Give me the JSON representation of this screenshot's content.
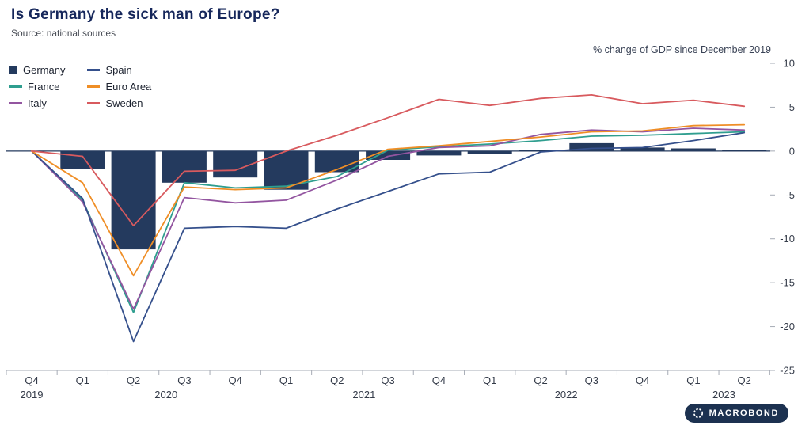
{
  "header": {
    "title": "Is Germany the sick man of Europe?",
    "source": "Source: national sources"
  },
  "chart": {
    "note": "% change of GDP since December 2019"
  },
  "logo": {
    "text": "MACROBOND"
  },
  "legend": {
    "items": [
      {
        "label": "Germany",
        "swatch": "square"
      },
      {
        "label": "France",
        "swatch": "line"
      },
      {
        "label": "Italy",
        "swatch": "line"
      },
      {
        "label": "Spain",
        "swatch": "line"
      },
      {
        "label": "Euro Area",
        "swatch": "line"
      },
      {
        "label": "Sweden",
        "swatch": "line"
      }
    ]
  },
  "chart_data": {
    "type": "combo-bar-line",
    "title": "Is Germany the sick man of Europe?",
    "note": "% change of GDP since December 2019",
    "categories": [
      "Q4 2019",
      "Q1 2020",
      "Q2 2020",
      "Q3 2020",
      "Q4 2020",
      "Q1 2021",
      "Q2 2021",
      "Q3 2021",
      "Q4 2021",
      "Q1 2022",
      "Q2 2022",
      "Q3 2022",
      "Q4 2022",
      "Q1 2023",
      "Q2 2023"
    ],
    "x_quarter_labels": [
      "Q4",
      "Q1",
      "Q2",
      "Q3",
      "Q4",
      "Q1",
      "Q2",
      "Q3",
      "Q4",
      "Q1",
      "Q2",
      "Q3",
      "Q4",
      "Q1",
      "Q2"
    ],
    "years": [
      {
        "label": "2019",
        "pos": 0
      },
      {
        "label": "2020",
        "pos": 2.64
      },
      {
        "label": "2021",
        "pos": 6.53
      },
      {
        "label": "2022",
        "pos": 10.5
      },
      {
        "label": "2023",
        "pos": 13.6
      }
    ],
    "y_ticks": [
      10,
      5,
      0,
      -5,
      -10,
      -15,
      -20,
      -25
    ],
    "ylim": [
      -25,
      10
    ],
    "grid": false,
    "legend_position": "top-left",
    "series": [
      {
        "name": "Germany",
        "type": "bar",
        "color": "#243a5e",
        "values": [
          0,
          -2.0,
          -11.2,
          -3.6,
          -3.0,
          -4.4,
          -2.4,
          -1.0,
          -0.5,
          -0.3,
          0.1,
          0.9,
          0.4,
          0.3,
          0.1
        ]
      },
      {
        "name": "France",
        "type": "line",
        "color": "#2f9e8f",
        "values": [
          0,
          -5.6,
          -18.4,
          -3.6,
          -4.2,
          -4.0,
          -2.9,
          0.1,
          0.5,
          0.8,
          1.2,
          1.7,
          1.8,
          2.0,
          2.2
        ]
      },
      {
        "name": "Italy",
        "type": "line",
        "color": "#9355a0",
        "values": [
          0,
          -5.8,
          -18.0,
          -5.3,
          -5.9,
          -5.6,
          -3.3,
          -0.6,
          0.4,
          0.6,
          1.9,
          2.4,
          2.2,
          2.6,
          2.4
        ]
      },
      {
        "name": "Spain",
        "type": "line",
        "color": "#35508c",
        "values": [
          0,
          -5.4,
          -21.7,
          -8.8,
          -8.6,
          -8.8,
          -6.6,
          -4.6,
          -2.6,
          -2.4,
          -0.1,
          0.3,
          0.4,
          1.2,
          2.1
        ]
      },
      {
        "name": "Euro Area",
        "type": "line",
        "color": "#ef8e26",
        "values": [
          0,
          -3.6,
          -14.2,
          -4.1,
          -4.4,
          -4.2,
          -2.1,
          0.2,
          0.6,
          1.1,
          1.6,
          2.2,
          2.3,
          2.9,
          3.0
        ]
      },
      {
        "name": "Sweden",
        "type": "line",
        "color": "#d85a5e",
        "values": [
          0,
          -0.6,
          -8.5,
          -2.3,
          -2.2,
          0.0,
          1.8,
          3.8,
          5.9,
          5.2,
          6.0,
          6.4,
          5.4,
          5.8,
          5.1
        ]
      }
    ]
  }
}
